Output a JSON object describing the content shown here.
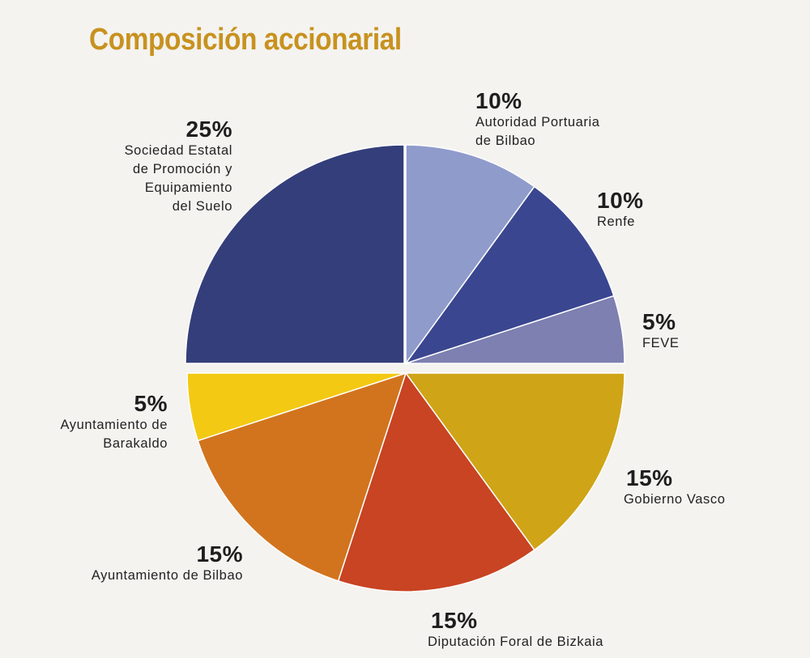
{
  "chart_data": {
    "type": "pie",
    "title": "Composición accionarial",
    "slices": [
      {
        "label": "Autoridad Portuaria\nde Bilbao",
        "percent_label": "10%",
        "value": 10,
        "color": "#8f9bcb"
      },
      {
        "label": "Renfe",
        "percent_label": "10%",
        "value": 10,
        "color": "#3a4690"
      },
      {
        "label": "FEVE",
        "percent_label": "5%",
        "value": 5,
        "color": "#7d80b0"
      },
      {
        "label": "Gobierno Vasco",
        "percent_label": "15%",
        "value": 15,
        "color": "#cfa417"
      },
      {
        "label": "Diputación Foral de Bizkaia",
        "percent_label": "15%",
        "value": 15,
        "color": "#c84422"
      },
      {
        "label": "Ayuntamiento de Bilbao",
        "percent_label": "15%",
        "value": 15,
        "color": "#d2741e"
      },
      {
        "label": "Ayuntamiento de\nBarakaldo",
        "percent_label": "5%",
        "value": 5,
        "color": "#f3c913"
      },
      {
        "label": "Sociedad Estatal\nde Promoción y\nEquipamiento\ndel Suelo",
        "percent_label": "25%",
        "value": 25,
        "color": "#343e7a"
      }
    ],
    "start_angle_deg": 0,
    "direction": "clockwise"
  }
}
